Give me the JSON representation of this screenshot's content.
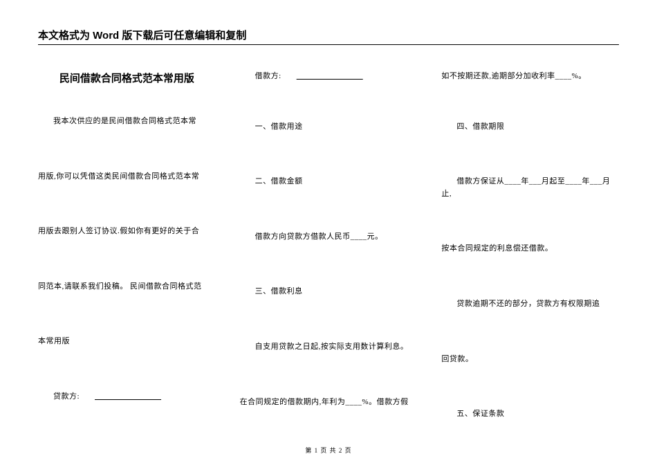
{
  "header": "本文格式为 Word 版下载后可任意编辑和复制",
  "column1": {
    "title": "民间借款合同格式范本常用版",
    "p1": "我本次供应的是民间借款合同格式范本常",
    "p2": "用版,你可以凭借这类民间借款合同格式范本常",
    "p3": "用版去跟别人签订协议.假如你有更好的关于合",
    "p4": "同范本,请联系我们投稿。 民间借款合同格式范",
    "p5": "本常用版",
    "p6_prefix": "贷款方:",
    "p6_line": "________________"
  },
  "column2": {
    "p1_prefix": "借款方:",
    "p1_line": "________________",
    "s1": "一、借款用途",
    "s2": "二、借款金额",
    "p2": "借款方向贷款方借款人民币____元。",
    "s3": "三、借款利息",
    "p3": "自支用贷款之日起,按实际支用数计算利息。",
    "p4": "在合同规定的借款期内,年利为____%。借款方假"
  },
  "column3": {
    "p1": "如不按期还款,逾期部分加收利率____%。",
    "s4": "四、借款期限",
    "p2": "借款方保证从____年___月起至____年___月止,",
    "p3": "按本合同规定的利息偿还借款。",
    "p4": "贷款逾期不还的部分，贷款方有权限期追",
    "p5": "回贷款。",
    "s5": "五、保证条款"
  },
  "footer": "第 1 页 共 2 页"
}
